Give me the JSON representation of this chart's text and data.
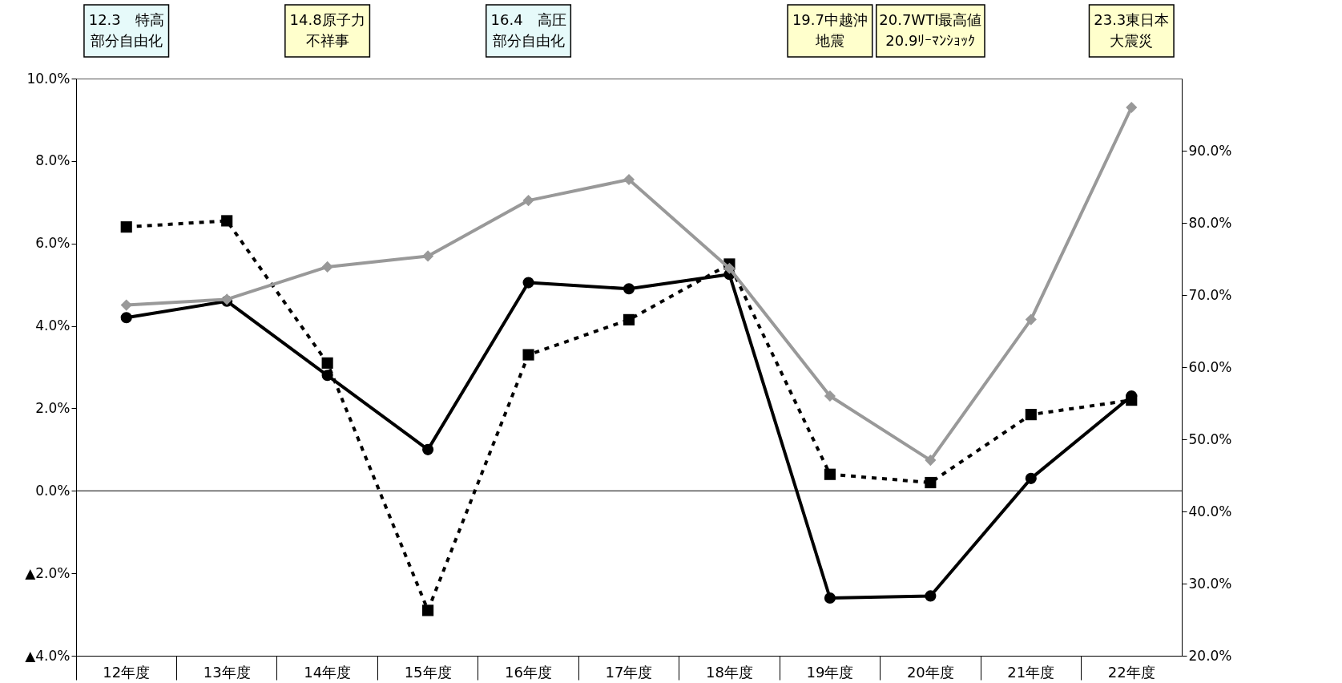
{
  "chart_data": {
    "type": "line",
    "categories": [
      "12年度",
      "13年度",
      "14年度",
      "15年度",
      "16年度",
      "17年度",
      "18年度",
      "19年度",
      "20年度",
      "21年度",
      "22年度"
    ],
    "series": [
      {
        "color": "#000000",
        "marker": "circle",
        "line_style": "solid",
        "values": [
          4.2,
          4.6,
          2.8,
          1.0,
          5.05,
          4.9,
          5.25,
          -2.6,
          -2.55,
          0.3,
          2.3
        ]
      },
      {
        "color": "#000000",
        "marker": "square",
        "line_style": "dotted",
        "values": [
          6.4,
          6.55,
          3.1,
          -2.9,
          3.3,
          4.15,
          5.5,
          0.4,
          0.2,
          1.85,
          2.2
        ]
      },
      {
        "color": "#999999",
        "marker": "diamond",
        "line_style": "solid",
        "axis": "y2",
        "values": [
          68.6,
          69.4,
          73.9,
          75.4,
          83.1,
          86.0,
          73.7,
          56.0,
          47.1,
          66.6,
          96.0
        ]
      }
    ],
    "ylim": [
      -4,
      10
    ],
    "yticks": [
      {
        "value": -4,
        "label": "▲4.0%"
      },
      {
        "value": -2,
        "label": "▲2.0%"
      },
      {
        "value": 0,
        "label": "0.0%"
      },
      {
        "value": 2,
        "label": "2.0%"
      },
      {
        "value": 4,
        "label": "4.0%"
      },
      {
        "value": 6,
        "label": "6.0%"
      },
      {
        "value": 8,
        "label": "8.0%"
      },
      {
        "value": 10,
        "label": "10.0%"
      }
    ],
    "y2lim": [
      20,
      100
    ],
    "y2ticks": [
      {
        "value": 20,
        "label": "20.0%"
      },
      {
        "value": 30,
        "label": "30.0%"
      },
      {
        "value": 40,
        "label": "40.0%"
      },
      {
        "value": 50,
        "label": "50.0%"
      },
      {
        "value": 60,
        "label": "60.0%"
      },
      {
        "value": 70,
        "label": "70.0%"
      },
      {
        "value": 80,
        "label": "80.0%"
      },
      {
        "value": 90,
        "label": "90.0%"
      }
    ],
    "ref_lines": [
      {
        "axis": "y",
        "value": 0,
        "color": "#000000"
      }
    ],
    "annotations": [
      "12.3　特高部分自由化",
      "14.8原子力不祥事",
      "16.4　高圧部分自由化",
      "19.7中越沖地震",
      "20.7WTI最高値",
      "20.9ﾘｰﾏﾝｼｮｯｸ",
      "23.3東日本大震災"
    ],
    "grid": false
  }
}
